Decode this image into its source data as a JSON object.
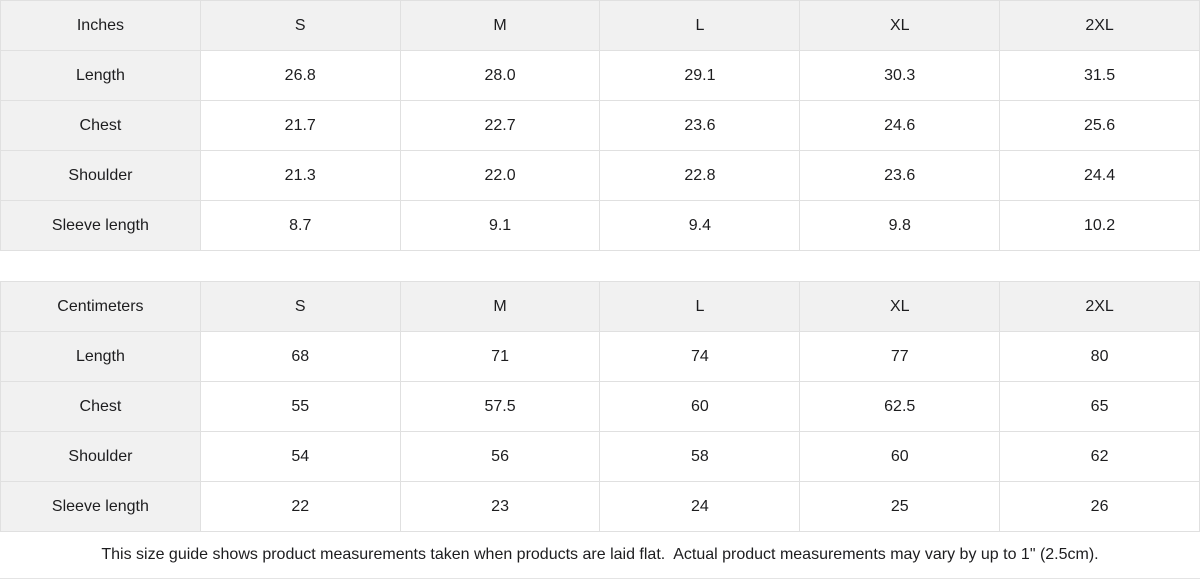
{
  "page": {
    "background": "#ffffff",
    "colors": {
      "header_cell_bg": "#f1f1f1",
      "border": "#e0e0e0",
      "text": "#1d1d1f"
    }
  },
  "tables": [
    {
      "unit_label": "Inches",
      "sizes": [
        "S",
        "M",
        "L",
        "XL",
        "2XL"
      ],
      "rows": [
        {
          "label": "Length",
          "values": [
            "26.8",
            "28.0",
            "29.1",
            "30.3",
            "31.5"
          ]
        },
        {
          "label": "Chest",
          "values": [
            "21.7",
            "22.7",
            "23.6",
            "24.6",
            "25.6"
          ]
        },
        {
          "label": "Shoulder",
          "values": [
            "21.3",
            "22.0",
            "22.8",
            "23.6",
            "24.4"
          ]
        },
        {
          "label": "Sleeve length",
          "values": [
            "8.7",
            "9.1",
            "9.4",
            "9.8",
            "10.2"
          ]
        }
      ]
    },
    {
      "unit_label": "Centimeters",
      "sizes": [
        "S",
        "M",
        "L",
        "XL",
        "2XL"
      ],
      "rows": [
        {
          "label": "Length",
          "values": [
            "68",
            "71",
            "74",
            "77",
            "80"
          ]
        },
        {
          "label": "Chest",
          "values": [
            "55",
            "57.5",
            "60",
            "62.5",
            "65"
          ]
        },
        {
          "label": "Shoulder",
          "values": [
            "54",
            "56",
            "58",
            "60",
            "62"
          ]
        },
        {
          "label": "Sleeve length",
          "values": [
            "22",
            "23",
            "24",
            "25",
            "26"
          ]
        }
      ]
    }
  ],
  "footer": {
    "note": "This size guide shows product measurements taken when products are laid flat.  Actual product measurements may vary by up to 1\" (2.5cm)."
  }
}
